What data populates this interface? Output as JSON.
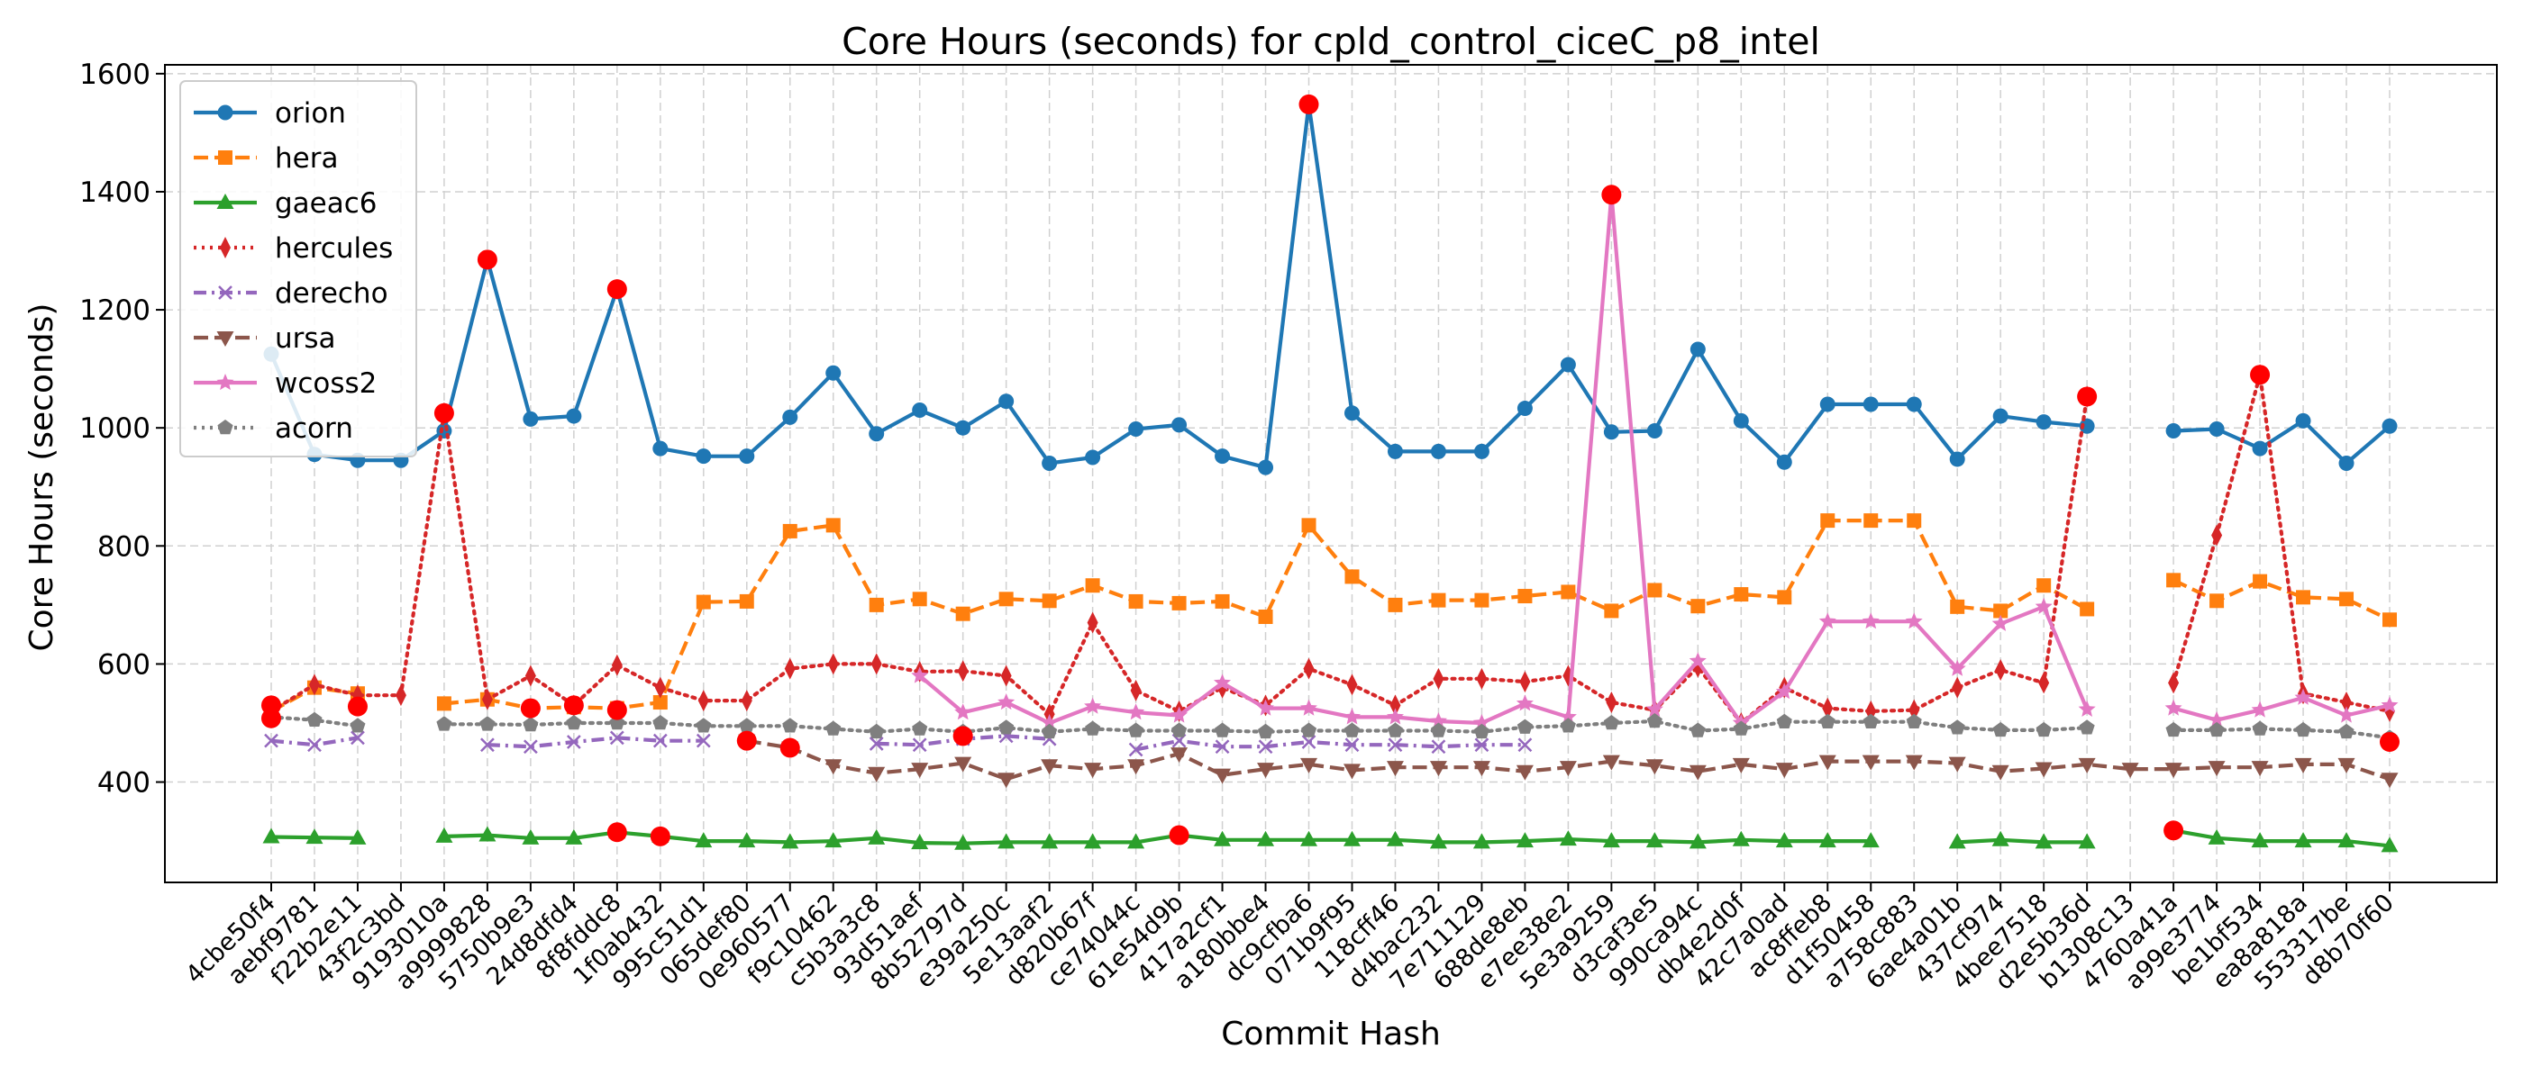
{
  "chart_data": {
    "type": "line",
    "title": "Core Hours (seconds) for cpld_control_ciceC_p8_intel",
    "xlabel": "Commit Hash",
    "ylabel": "Core Hours (seconds)",
    "ylim": [
      230,
      1615
    ],
    "yticks": [
      400,
      600,
      800,
      1000,
      1200,
      1400,
      1600
    ],
    "grid": true,
    "legend_position": "top-left",
    "categories": [
      "4cbe50f4",
      "aebf9781",
      "f22b2e11",
      "43f2c3bd",
      "9193010a",
      "a9999828",
      "5750b9e3",
      "24d8dfd4",
      "8f8fddc8",
      "1f0ab432",
      "995c51d1",
      "065def80",
      "0e960577",
      "f9c10462",
      "c5b3a3c8",
      "93d51aef",
      "8b52797d",
      "e39a250c",
      "5e13aaf2",
      "d820b67f",
      "ce74044c",
      "61e54d9b",
      "417a2cf1",
      "a180bbe4",
      "dc9cfba6",
      "071b9f95",
      "118cff46",
      "d4bac232",
      "7e711129",
      "688de8eb",
      "e7ee38e2",
      "5e3a9259",
      "d3caf3e5",
      "990ca94c",
      "db4e2d0f",
      "42c7a0ad",
      "ac8ffeb8",
      "d1f50458",
      "a758c883",
      "6ae4a01b",
      "437cf974",
      "4bee7518",
      "d2e5b36d",
      "b1308c13",
      "4760a41a",
      "a99e3774",
      "be1bf534",
      "ea8a818a",
      "553317be",
      "d8b70f60"
    ],
    "series": [
      {
        "name": "orion",
        "color": "#1f77b4",
        "style": "solid",
        "marker": "circle",
        "values": [
          1125,
          955,
          945,
          945,
          995,
          1285,
          1015,
          1020,
          1235,
          965,
          952,
          952,
          1018,
          1093,
          990,
          1030,
          1000,
          1045,
          940,
          950,
          998,
          1005,
          952,
          933,
          1548,
          1025,
          960,
          960,
          960,
          1033,
          1107,
          993,
          995,
          1133,
          1012,
          942,
          1040,
          1040,
          1040,
          947,
          1020,
          1010,
          1003,
          null,
          995,
          998,
          965,
          1012,
          940,
          1003
        ]
      },
      {
        "name": "hera",
        "color": "#ff7f0e",
        "style": "dashed",
        "marker": "square",
        "values": [
          520,
          560,
          550,
          null,
          533,
          540,
          525,
          527,
          525,
          535,
          705,
          706,
          825,
          835,
          700,
          710,
          685,
          710,
          707,
          733,
          706,
          703,
          706,
          680,
          835,
          748,
          700,
          708,
          708,
          715,
          722,
          690,
          725,
          698,
          718,
          713,
          843,
          843,
          843,
          697,
          690,
          733,
          693,
          null,
          742,
          707,
          740,
          713,
          710,
          675
        ]
      },
      {
        "name": "gaeac6",
        "color": "#2ca02c",
        "style": "solid",
        "marker": "triangle",
        "values": [
          307,
          306,
          305,
          null,
          308,
          310,
          305,
          305,
          315,
          308,
          300,
          300,
          298,
          300,
          305,
          297,
          296,
          298,
          298,
          298,
          298,
          310,
          302,
          302,
          302,
          302,
          302,
          298,
          298,
          300,
          303,
          300,
          300,
          298,
          302,
          300,
          300,
          300,
          null,
          298,
          302,
          298,
          298,
          null,
          318,
          305,
          300,
          300,
          300,
          292
        ]
      },
      {
        "name": "hercules",
        "color": "#d62728",
        "style": "dotted",
        "marker": "thin_diamond",
        "values": [
          520,
          565,
          547,
          547,
          1025,
          540,
          580,
          530,
          598,
          560,
          538,
          538,
          592,
          600,
          600,
          587,
          588,
          580,
          515,
          670,
          555,
          520,
          560,
          530,
          592,
          565,
          530,
          575,
          575,
          570,
          580,
          535,
          522,
          595,
          500,
          560,
          525,
          520,
          522,
          560,
          590,
          568,
          1053,
          null,
          568,
          818,
          1090,
          550,
          535,
          520
        ]
      },
      {
        "name": "derecho",
        "color": "#9467bd",
        "style": "dashdot",
        "marker": "x",
        "values": [
          470,
          463,
          475,
          null,
          null,
          463,
          460,
          468,
          475,
          470,
          470,
          null,
          null,
          null,
          465,
          463,
          473,
          478,
          473,
          null,
          455,
          470,
          460,
          460,
          468,
          463,
          463,
          460,
          463,
          463,
          null,
          null,
          null,
          null,
          null,
          null,
          null,
          null,
          null,
          null,
          null,
          null,
          null,
          null,
          null,
          null,
          null,
          null,
          null,
          null
        ]
      },
      {
        "name": "ursa",
        "color": "#8c564b",
        "style": "dashed",
        "marker": "triangle_down",
        "values": [
          null,
          null,
          null,
          null,
          null,
          null,
          null,
          null,
          null,
          null,
          null,
          470,
          458,
          428,
          415,
          422,
          432,
          405,
          428,
          422,
          428,
          448,
          412,
          422,
          430,
          420,
          425,
          425,
          425,
          418,
          425,
          435,
          428,
          418,
          430,
          422,
          435,
          435,
          435,
          432,
          418,
          423,
          430,
          422,
          422,
          425,
          425,
          430,
          430,
          405
        ]
      },
      {
        "name": "wcoss2",
        "color": "#e377c2",
        "style": "solid",
        "marker": "star",
        "values": [
          null,
          null,
          null,
          null,
          null,
          null,
          null,
          null,
          null,
          null,
          null,
          null,
          null,
          null,
          null,
          580,
          518,
          535,
          500,
          528,
          518,
          513,
          568,
          525,
          525,
          510,
          510,
          503,
          500,
          533,
          510,
          1395,
          523,
          605,
          500,
          553,
          672,
          672,
          672,
          592,
          668,
          697,
          523,
          null,
          525,
          505,
          522,
          543,
          513,
          530
        ]
      },
      {
        "name": "acorn",
        "color": "#7f7f7f",
        "style": "dotted",
        "marker": "pentagon",
        "values": [
          510,
          505,
          495,
          null,
          498,
          498,
          497,
          500,
          500,
          500,
          495,
          495,
          495,
          490,
          485,
          490,
          485,
          492,
          485,
          490,
          487,
          487,
          487,
          485,
          487,
          487,
          487,
          487,
          485,
          493,
          495,
          500,
          503,
          487,
          490,
          502,
          502,
          502,
          502,
          492,
          488,
          488,
          492,
          null,
          488,
          488,
          490,
          488,
          485,
          475
        ]
      }
    ],
    "highlight_points": [
      {
        "x": "4cbe50f4",
        "y": 530
      },
      {
        "x": "4cbe50f4",
        "y": 508
      },
      {
        "x": "f22b2e11",
        "y": 528
      },
      {
        "x": "9193010a",
        "y": 1025
      },
      {
        "x": "a9999828",
        "y": 1285
      },
      {
        "x": "5750b9e3",
        "y": 525
      },
      {
        "x": "24d8dfd4",
        "y": 530
      },
      {
        "x": "8f8fddc8",
        "y": 1235
      },
      {
        "x": "8f8fddc8",
        "y": 522
      },
      {
        "x": "8f8fddc8",
        "y": 315
      },
      {
        "x": "1f0ab432",
        "y": 308
      },
      {
        "x": "065def80",
        "y": 470
      },
      {
        "x": "0e960577",
        "y": 458
      },
      {
        "x": "8b52797d",
        "y": 478
      },
      {
        "x": "61e54d9b",
        "y": 310
      },
      {
        "x": "dc9cfba6",
        "y": 1548
      },
      {
        "x": "5e3a9259",
        "y": 1395
      },
      {
        "x": "d2e5b36d",
        "y": 1053
      },
      {
        "x": "4760a41a",
        "y": 318
      },
      {
        "x": "be1bf534",
        "y": 1090
      },
      {
        "x": "d8b70f60",
        "y": 468
      }
    ],
    "highlight_color": "#ff0000"
  }
}
